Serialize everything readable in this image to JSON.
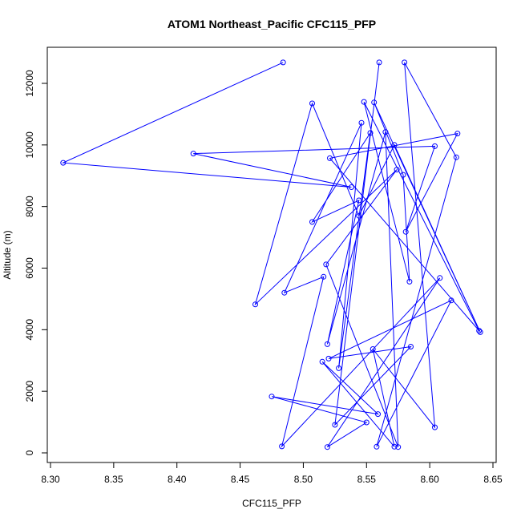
{
  "chart_data": {
    "type": "line",
    "title": "ATOM1 Northeast_Pacific CFC115_PFP",
    "xlabel": "CFC115_PFP",
    "ylabel": "Altitude (m)",
    "xlim": [
      8.3,
      8.65
    ],
    "ylim": [
      0,
      12000
    ],
    "x_ticks": [
      "8.30",
      "8.35",
      "8.40",
      "8.45",
      "8.50",
      "8.55",
      "8.60",
      "8.65"
    ],
    "y_ticks": [
      "0",
      "2000",
      "4000",
      "6000",
      "8000",
      "10000",
      "12000"
    ],
    "markers": "open-circle",
    "grid": false,
    "colors": {
      "series": "#0000ff",
      "axes": "#000000"
    },
    "series": [
      {
        "points": [
          [
            8.484,
            12680
          ],
          [
            8.31,
            9420
          ],
          [
            8.538,
            8630
          ],
          [
            8.413,
            9720
          ],
          [
            8.604,
            9960
          ],
          [
            8.581,
            7180
          ],
          [
            8.622,
            10370
          ],
          [
            8.521,
            9570
          ],
          [
            8.639,
            3970
          ],
          [
            8.548,
            11400
          ],
          [
            8.584,
            5560
          ],
          [
            8.579,
            9030
          ],
          [
            8.556,
            11380
          ],
          [
            8.64,
            3920
          ],
          [
            8.572,
            10000
          ],
          [
            8.544,
            7700
          ],
          [
            8.507,
            11350
          ],
          [
            8.462,
            4820
          ],
          [
            8.574,
            9200
          ],
          [
            8.518,
            6120
          ],
          [
            8.575,
            190
          ],
          [
            8.565,
            10420
          ],
          [
            8.519,
            3530
          ],
          [
            8.544,
            8200
          ],
          [
            8.507,
            7500
          ],
          [
            8.553,
            10390
          ],
          [
            8.528,
            2750
          ],
          [
            8.546,
            10720
          ],
          [
            8.485,
            5200
          ],
          [
            8.516,
            5720
          ],
          [
            8.483,
            210
          ],
          [
            8.608,
            5680
          ],
          [
            8.519,
            190
          ],
          [
            8.55,
            990
          ],
          [
            8.475,
            1830
          ],
          [
            8.559,
            1260
          ],
          [
            8.515,
            2960
          ],
          [
            8.572,
            200
          ],
          [
            8.555,
            3370
          ],
          [
            8.604,
            830
          ],
          [
            8.58,
            12680
          ],
          [
            8.621,
            9600
          ],
          [
            8.558,
            200
          ],
          [
            8.617,
            4950
          ],
          [
            8.52,
            3060
          ],
          [
            8.585,
            3450
          ],
          [
            8.525,
            910
          ],
          [
            8.56,
            12680
          ]
        ]
      }
    ]
  }
}
